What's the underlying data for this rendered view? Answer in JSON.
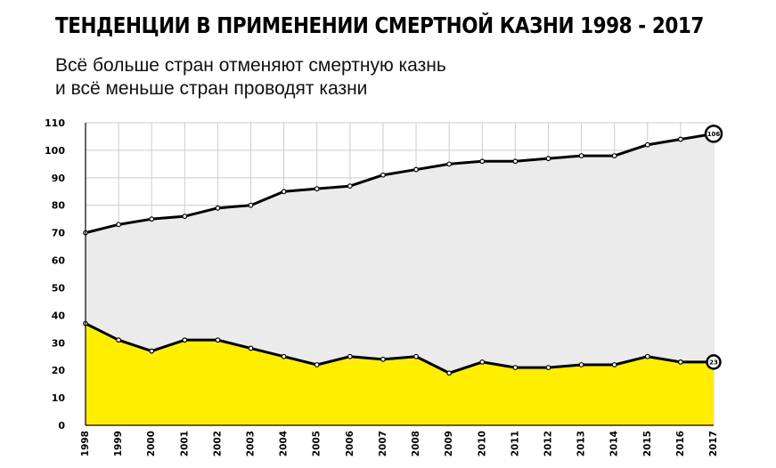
{
  "title": "ТЕНДЕНЦИИ В ПРИМЕНЕНИИ СМЕРТНОЙ КАЗНИ 1998 - 2017",
  "subtitle_lines": [
    "Всё больше стран отменяют смертную казнь",
    "и всё меньше стран проводят казни"
  ],
  "colors": {
    "abolition_fill": "#ebebeb",
    "execution_fill": "#ffee00",
    "line": "#000000",
    "grid": "#cccccc"
  },
  "chart_data": {
    "type": "area",
    "x": [
      1998,
      1999,
      2000,
      2001,
      2002,
      2003,
      2004,
      2005,
      2006,
      2007,
      2008,
      2009,
      2010,
      2011,
      2012,
      2013,
      2014,
      2015,
      2016,
      2017
    ],
    "xticks": [
      "1998",
      "1999",
      "2000",
      "2001",
      "2002",
      "2003",
      "2004",
      "2005",
      "2006",
      "2007",
      "2008",
      "2009",
      "2010",
      "2011",
      "2012",
      "2013",
      "2014",
      "2015",
      "2016",
      "2017"
    ],
    "ylim": [
      0,
      110
    ],
    "yticks": [
      0,
      10,
      20,
      30,
      40,
      50,
      60,
      70,
      80,
      90,
      100,
      110
    ],
    "grid": true,
    "legend": "none",
    "series": [
      {
        "key": "abolished",
        "values": [
          70,
          73,
          75,
          76,
          79,
          80,
          85,
          86,
          87,
          91,
          93,
          95,
          96,
          96,
          97,
          98,
          98,
          102,
          104,
          106
        ],
        "end_label": "106"
      },
      {
        "key": "executed",
        "values": [
          37,
          31,
          27,
          31,
          31,
          28,
          25,
          22,
          25,
          24,
          25,
          19,
          23,
          21,
          21,
          22,
          22,
          25,
          23,
          23
        ],
        "end_label": "23"
      }
    ]
  }
}
